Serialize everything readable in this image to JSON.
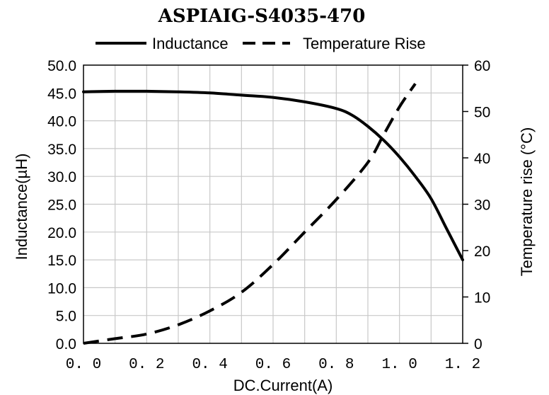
{
  "chart_data": {
    "type": "line",
    "title": "ASPIAIG-S4035-470",
    "xlabel": "DC.Current(A)",
    "ylabel_left": "Inductance(µH)",
    "ylabel_right": "Temperature rise (°C)",
    "xlim": [
      0.0,
      1.2
    ],
    "ylim_left": [
      0.0,
      50.0
    ],
    "ylim_right": [
      0,
      60
    ],
    "x_ticks": [
      "0. 0",
      "0. 2",
      "0. 4",
      "0. 6",
      "0. 8",
      "1. 0",
      "1. 2"
    ],
    "y_left_ticks": [
      "50.0",
      "45.0",
      "40.0",
      "35.0",
      "30.0",
      "25.0",
      "20.0",
      "15.0",
      "10.0",
      "5.0",
      "0.0"
    ],
    "y_right_ticks": [
      "60",
      "50",
      "40",
      "30",
      "20",
      "10",
      "0"
    ],
    "grid": true,
    "legend_position": "top",
    "series": [
      {
        "name": "Inductance",
        "axis": "left",
        "style": "solid",
        "color": "#000000",
        "x": [
          0.0,
          0.1,
          0.2,
          0.3,
          0.4,
          0.5,
          0.6,
          0.7,
          0.8,
          0.85,
          0.9,
          0.95,
          1.0,
          1.05,
          1.1,
          1.15,
          1.2
        ],
        "y": [
          45.2,
          45.3,
          45.3,
          45.2,
          45.0,
          44.6,
          44.2,
          43.4,
          42.2,
          41.0,
          39.0,
          36.5,
          33.5,
          30.0,
          26.0,
          20.5,
          15.0
        ]
      },
      {
        "name": "Temperature Rise",
        "axis": "right",
        "style": "dashed",
        "color": "#000000",
        "x": [
          0.0,
          0.1,
          0.2,
          0.3,
          0.4,
          0.5,
          0.6,
          0.7,
          0.8,
          0.9,
          0.95,
          1.0,
          1.05
        ],
        "y": [
          0,
          1,
          2,
          4,
          7,
          11,
          17,
          24,
          31,
          39,
          45,
          51,
          56
        ]
      }
    ]
  }
}
